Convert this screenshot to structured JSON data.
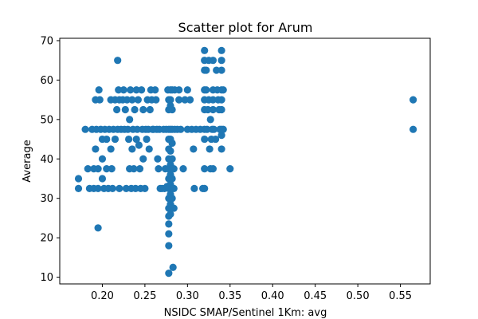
{
  "chart_data": {
    "type": "scatter",
    "title": "Scatter plot for Arum",
    "xlabel": "NSIDC SMAP/Sentinel 1Km: avg",
    "ylabel": "Average",
    "xlim": [
      0.15,
      0.585
    ],
    "ylim": [
      8.3,
      70.6
    ],
    "xticks": [
      0.2,
      0.25,
      0.3,
      0.35,
      0.4,
      0.45,
      0.5,
      0.55
    ],
    "xtick_labels": [
      "0.20",
      "0.25",
      "0.30",
      "0.35",
      "0.40",
      "0.45",
      "0.50",
      "0.55"
    ],
    "yticks": [
      10,
      20,
      30,
      40,
      50,
      60,
      70
    ],
    "ytick_labels": [
      "10",
      "20",
      "30",
      "40",
      "50",
      "60",
      "70"
    ],
    "grid": false,
    "color": "#1f77b4",
    "points": [
      {
        "x": 0.172,
        "y": 35.0
      },
      {
        "x": 0.172,
        "y": 32.5
      },
      {
        "x": 0.18,
        "y": 47.5
      },
      {
        "x": 0.183,
        "y": 37.5
      },
      {
        "x": 0.185,
        "y": 32.5
      },
      {
        "x": 0.188,
        "y": 47.5
      },
      {
        "x": 0.19,
        "y": 37.5
      },
      {
        "x": 0.19,
        "y": 32.5
      },
      {
        "x": 0.192,
        "y": 42.5
      },
      {
        "x": 0.192,
        "y": 55.0
      },
      {
        "x": 0.193,
        "y": 47.5
      },
      {
        "x": 0.195,
        "y": 37.5
      },
      {
        "x": 0.195,
        "y": 32.5
      },
      {
        "x": 0.195,
        "y": 22.5
      },
      {
        "x": 0.196,
        "y": 57.5
      },
      {
        "x": 0.197,
        "y": 55.0
      },
      {
        "x": 0.198,
        "y": 47.5
      },
      {
        "x": 0.2,
        "y": 45.0
      },
      {
        "x": 0.2,
        "y": 40.0
      },
      {
        "x": 0.2,
        "y": 35.0
      },
      {
        "x": 0.202,
        "y": 32.5
      },
      {
        "x": 0.203,
        "y": 47.5
      },
      {
        "x": 0.205,
        "y": 45.0
      },
      {
        "x": 0.205,
        "y": 37.5
      },
      {
        "x": 0.207,
        "y": 32.5
      },
      {
        "x": 0.208,
        "y": 47.5
      },
      {
        "x": 0.21,
        "y": 55.0
      },
      {
        "x": 0.21,
        "y": 42.5
      },
      {
        "x": 0.211,
        "y": 37.5
      },
      {
        "x": 0.212,
        "y": 32.5
      },
      {
        "x": 0.213,
        "y": 47.5
      },
      {
        "x": 0.215,
        "y": 45.0
      },
      {
        "x": 0.215,
        "y": 55.0
      },
      {
        "x": 0.217,
        "y": 52.5
      },
      {
        "x": 0.218,
        "y": 47.5
      },
      {
        "x": 0.218,
        "y": 65.0
      },
      {
        "x": 0.219,
        "y": 57.5
      },
      {
        "x": 0.22,
        "y": 55.0
      },
      {
        "x": 0.22,
        "y": 32.5
      },
      {
        "x": 0.222,
        "y": 47.5
      },
      {
        "x": 0.224,
        "y": 55.0
      },
      {
        "x": 0.225,
        "y": 57.5
      },
      {
        "x": 0.226,
        "y": 47.5
      },
      {
        "x": 0.227,
        "y": 52.5
      },
      {
        "x": 0.228,
        "y": 32.5
      },
      {
        "x": 0.229,
        "y": 55.0
      },
      {
        "x": 0.23,
        "y": 47.5
      },
      {
        "x": 0.231,
        "y": 45.0
      },
      {
        "x": 0.232,
        "y": 50.0
      },
      {
        "x": 0.232,
        "y": 37.5
      },
      {
        "x": 0.233,
        "y": 57.5
      },
      {
        "x": 0.234,
        "y": 32.5
      },
      {
        "x": 0.235,
        "y": 55.0
      },
      {
        "x": 0.235,
        "y": 42.5
      },
      {
        "x": 0.236,
        "y": 47.5
      },
      {
        "x": 0.237,
        "y": 37.5
      },
      {
        "x": 0.238,
        "y": 52.5
      },
      {
        "x": 0.239,
        "y": 32.5
      },
      {
        "x": 0.24,
        "y": 45.0
      },
      {
        "x": 0.24,
        "y": 57.5
      },
      {
        "x": 0.241,
        "y": 47.5
      },
      {
        "x": 0.242,
        "y": 55.0
      },
      {
        "x": 0.243,
        "y": 43.5
      },
      {
        "x": 0.244,
        "y": 37.5
      },
      {
        "x": 0.245,
        "y": 32.5
      },
      {
        "x": 0.246,
        "y": 57.5
      },
      {
        "x": 0.247,
        "y": 47.5
      },
      {
        "x": 0.248,
        "y": 40.0
      },
      {
        "x": 0.248,
        "y": 52.5
      },
      {
        "x": 0.25,
        "y": 32.5
      },
      {
        "x": 0.251,
        "y": 47.5
      },
      {
        "x": 0.252,
        "y": 45.0
      },
      {
        "x": 0.253,
        "y": 55.0
      },
      {
        "x": 0.254,
        "y": 47.5
      },
      {
        "x": 0.255,
        "y": 42.5
      },
      {
        "x": 0.256,
        "y": 52.5
      },
      {
        "x": 0.257,
        "y": 57.5
      },
      {
        "x": 0.258,
        "y": 55.0
      },
      {
        "x": 0.259,
        "y": 47.5
      },
      {
        "x": 0.26,
        "y": 47.5
      },
      {
        "x": 0.262,
        "y": 57.5
      },
      {
        "x": 0.263,
        "y": 55.0
      },
      {
        "x": 0.264,
        "y": 47.5
      },
      {
        "x": 0.265,
        "y": 40.0
      },
      {
        "x": 0.266,
        "y": 37.5
      },
      {
        "x": 0.267,
        "y": 47.5
      },
      {
        "x": 0.268,
        "y": 32.5
      },
      {
        "x": 0.27,
        "y": 32.5
      },
      {
        "x": 0.272,
        "y": 47.5
      },
      {
        "x": 0.273,
        "y": 32.5
      },
      {
        "x": 0.274,
        "y": 37.5
      },
      {
        "x": 0.275,
        "y": 47.5
      },
      {
        "x": 0.276,
        "y": 33.0
      },
      {
        "x": 0.277,
        "y": 57.5
      },
      {
        "x": 0.278,
        "y": 55.0
      },
      {
        "x": 0.278,
        "y": 52.5
      },
      {
        "x": 0.278,
        "y": 47.5
      },
      {
        "x": 0.278,
        "y": 45.0
      },
      {
        "x": 0.278,
        "y": 42.5
      },
      {
        "x": 0.278,
        "y": 40.0
      },
      {
        "x": 0.278,
        "y": 37.5
      },
      {
        "x": 0.278,
        "y": 35.0
      },
      {
        "x": 0.278,
        "y": 32.5
      },
      {
        "x": 0.278,
        "y": 30.0
      },
      {
        "x": 0.278,
        "y": 27.5
      },
      {
        "x": 0.278,
        "y": 25.5
      },
      {
        "x": 0.278,
        "y": 23.5
      },
      {
        "x": 0.278,
        "y": 21.0
      },
      {
        "x": 0.278,
        "y": 18.0
      },
      {
        "x": 0.278,
        "y": 11.0
      },
      {
        "x": 0.28,
        "y": 57.5
      },
      {
        "x": 0.28,
        "y": 55.0
      },
      {
        "x": 0.28,
        "y": 53.5
      },
      {
        "x": 0.28,
        "y": 47.5
      },
      {
        "x": 0.28,
        "y": 45.0
      },
      {
        "x": 0.28,
        "y": 42.0
      },
      {
        "x": 0.28,
        "y": 38.5
      },
      {
        "x": 0.28,
        "y": 36.0
      },
      {
        "x": 0.28,
        "y": 33.5
      },
      {
        "x": 0.28,
        "y": 31.0
      },
      {
        "x": 0.28,
        "y": 28.5
      },
      {
        "x": 0.28,
        "y": 26.0
      },
      {
        "x": 0.282,
        "y": 57.5
      },
      {
        "x": 0.282,
        "y": 52.5
      },
      {
        "x": 0.282,
        "y": 47.5
      },
      {
        "x": 0.282,
        "y": 44.0
      },
      {
        "x": 0.282,
        "y": 40.0
      },
      {
        "x": 0.282,
        "y": 37.5
      },
      {
        "x": 0.282,
        "y": 35.0
      },
      {
        "x": 0.282,
        "y": 32.5
      },
      {
        "x": 0.282,
        "y": 30.0
      },
      {
        "x": 0.282,
        "y": 27.5
      },
      {
        "x": 0.283,
        "y": 12.5
      },
      {
        "x": 0.284,
        "y": 37.5
      },
      {
        "x": 0.284,
        "y": 32.5
      },
      {
        "x": 0.284,
        "y": 27.5
      },
      {
        "x": 0.285,
        "y": 47.5
      },
      {
        "x": 0.285,
        "y": 57.5
      },
      {
        "x": 0.288,
        "y": 47.5
      },
      {
        "x": 0.29,
        "y": 55.0
      },
      {
        "x": 0.29,
        "y": 57.5
      },
      {
        "x": 0.292,
        "y": 47.5
      },
      {
        "x": 0.295,
        "y": 37.5
      },
      {
        "x": 0.297,
        "y": 55.0
      },
      {
        "x": 0.3,
        "y": 57.5
      },
      {
        "x": 0.3,
        "y": 47.5
      },
      {
        "x": 0.303,
        "y": 55.0
      },
      {
        "x": 0.305,
        "y": 47.5
      },
      {
        "x": 0.307,
        "y": 42.5
      },
      {
        "x": 0.308,
        "y": 32.5
      },
      {
        "x": 0.31,
        "y": 47.5
      },
      {
        "x": 0.315,
        "y": 47.5
      },
      {
        "x": 0.318,
        "y": 32.5
      },
      {
        "x": 0.32,
        "y": 67.5
      },
      {
        "x": 0.32,
        "y": 65.0
      },
      {
        "x": 0.32,
        "y": 62.5
      },
      {
        "x": 0.32,
        "y": 57.5
      },
      {
        "x": 0.32,
        "y": 55.0
      },
      {
        "x": 0.32,
        "y": 52.5
      },
      {
        "x": 0.32,
        "y": 47.5
      },
      {
        "x": 0.32,
        "y": 45.0
      },
      {
        "x": 0.32,
        "y": 37.5
      },
      {
        "x": 0.32,
        "y": 32.5
      },
      {
        "x": 0.322,
        "y": 62.5
      },
      {
        "x": 0.322,
        "y": 57.5
      },
      {
        "x": 0.323,
        "y": 47.5
      },
      {
        "x": 0.324,
        "y": 52.5
      },
      {
        "x": 0.325,
        "y": 65.0
      },
      {
        "x": 0.325,
        "y": 55.0
      },
      {
        "x": 0.326,
        "y": 42.5
      },
      {
        "x": 0.327,
        "y": 37.5
      },
      {
        "x": 0.327,
        "y": 50.0
      },
      {
        "x": 0.328,
        "y": 45.0
      },
      {
        "x": 0.329,
        "y": 47.5
      },
      {
        "x": 0.33,
        "y": 65.0
      },
      {
        "x": 0.33,
        "y": 57.5
      },
      {
        "x": 0.33,
        "y": 55.0
      },
      {
        "x": 0.33,
        "y": 52.5
      },
      {
        "x": 0.33,
        "y": 37.5
      },
      {
        "x": 0.331,
        "y": 47.5
      },
      {
        "x": 0.333,
        "y": 45.0
      },
      {
        "x": 0.334,
        "y": 62.5
      },
      {
        "x": 0.335,
        "y": 57.5
      },
      {
        "x": 0.336,
        "y": 55.0
      },
      {
        "x": 0.337,
        "y": 52.5
      },
      {
        "x": 0.338,
        "y": 47.5
      },
      {
        "x": 0.34,
        "y": 67.5
      },
      {
        "x": 0.34,
        "y": 65.0
      },
      {
        "x": 0.34,
        "y": 62.5
      },
      {
        "x": 0.34,
        "y": 57.5
      },
      {
        "x": 0.34,
        "y": 55.0
      },
      {
        "x": 0.34,
        "y": 52.5
      },
      {
        "x": 0.34,
        "y": 47.5
      },
      {
        "x": 0.34,
        "y": 46.0
      },
      {
        "x": 0.34,
        "y": 42.5
      },
      {
        "x": 0.342,
        "y": 57.5
      },
      {
        "x": 0.342,
        "y": 47.5
      },
      {
        "x": 0.35,
        "y": 37.5
      },
      {
        "x": 0.565,
        "y": 55.0
      },
      {
        "x": 0.565,
        "y": 47.5
      }
    ]
  }
}
